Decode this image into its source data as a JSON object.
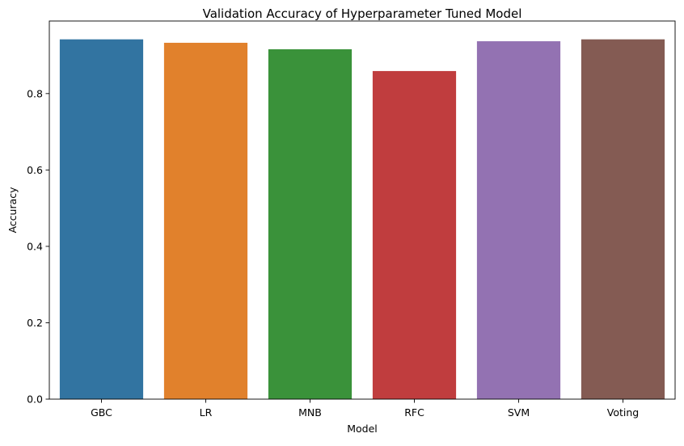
{
  "chart_data": {
    "type": "bar",
    "title": "Validation Accuracy of Hyperparameter Tuned Model",
    "xlabel": "Model",
    "ylabel": "Accuracy",
    "categories": [
      "GBC",
      "LR",
      "MNB",
      "RFC",
      "SVM",
      "Voting"
    ],
    "values": [
      0.942,
      0.933,
      0.916,
      0.859,
      0.937,
      0.942
    ],
    "colors": [
      "#3274a1",
      "#e1812c",
      "#3a923a",
      "#c03d3e",
      "#9372b2",
      "#845b53"
    ],
    "ylim": [
      0,
      0.99
    ],
    "yticks": [
      "0.0",
      "0.2",
      "0.4",
      "0.6",
      "0.8"
    ],
    "grid": false,
    "legend": "none"
  }
}
